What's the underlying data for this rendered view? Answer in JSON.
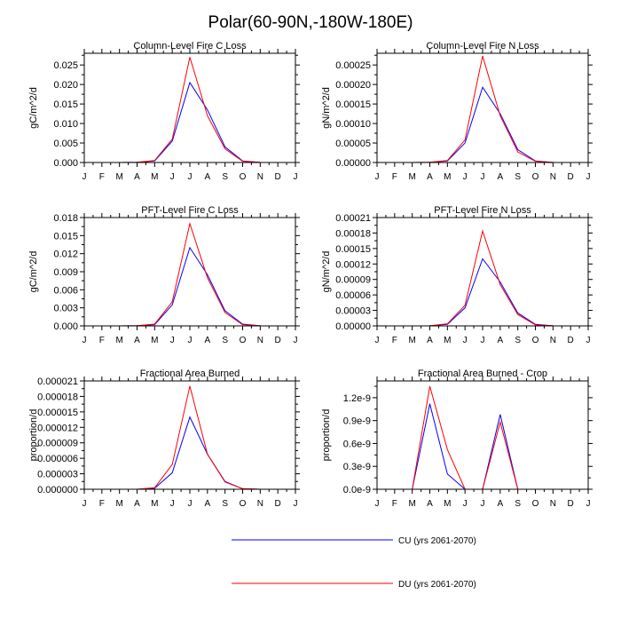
{
  "title": "Polar(60-90N,-180W-180E)",
  "month_labels": [
    "J",
    "F",
    "M",
    "A",
    "M",
    "J",
    "J",
    "A",
    "S",
    "O",
    "N",
    "D",
    "J"
  ],
  "series_meta": [
    {
      "name": "CU (yrs 2061-2070)",
      "color": "#0000ff"
    },
    {
      "name": "DU (yrs 2061-2070)",
      "color": "#ff0000"
    }
  ],
  "legend": {
    "cu_label": "CU (yrs 2061-2070)",
    "du_label": "DU (yrs 2061-2070)"
  },
  "chart_data": [
    {
      "type": "line",
      "title": "Column-Level Fire C Loss",
      "ylabel": "gC/m^2/d",
      "ylim": [
        0,
        0.028
      ],
      "yticks": [
        0,
        0.005,
        0.01,
        0.015,
        0.02,
        0.025
      ],
      "ytick_labels": [
        "0.000",
        "0.005",
        "0.010",
        "0.015",
        "0.020",
        "0.025"
      ],
      "x": [
        1,
        2,
        3,
        4,
        5,
        6,
        7,
        8,
        9,
        10,
        11,
        12,
        13
      ],
      "series": [
        {
          "name": "CU (yrs 2061-2070)",
          "values": [
            0,
            0,
            0,
            5e-05,
            0.0004,
            0.0055,
            0.0205,
            0.0135,
            0.004,
            0.0004,
            2e-05,
            0,
            0
          ]
        },
        {
          "name": "DU (yrs 2061-2070)",
          "values": [
            0,
            0,
            0,
            5e-05,
            0.0005,
            0.006,
            0.027,
            0.012,
            0.0035,
            0.0003,
            2e-05,
            0,
            0
          ]
        }
      ]
    },
    {
      "type": "line",
      "title": "Column-Level Fire N Loss",
      "ylabel": "gN/m^2/d",
      "ylim": [
        0,
        0.00028
      ],
      "yticks": [
        0,
        5e-05,
        0.0001,
        0.00015,
        0.0002,
        0.00025
      ],
      "ytick_labels": [
        "0.00000",
        "0.00005",
        "0.00010",
        "0.00015",
        "0.00020",
        "0.00025"
      ],
      "x": [
        1,
        2,
        3,
        4,
        5,
        6,
        7,
        8,
        9,
        10,
        11,
        12,
        13
      ],
      "series": [
        {
          "name": "CU (yrs 2061-2070)",
          "values": [
            0,
            0,
            0,
            5e-07,
            4e-06,
            5e-05,
            0.000193,
            0.000125,
            3.3e-05,
            4e-06,
            3e-07,
            0,
            0
          ]
        },
        {
          "name": "DU (yrs 2061-2070)",
          "values": [
            0,
            0,
            0,
            5e-07,
            5e-06,
            5.8e-05,
            0.000273,
            0.00012,
            2.7e-05,
            3e-06,
            3e-07,
            0,
            0
          ]
        }
      ]
    },
    {
      "type": "line",
      "title": "PFT-Level Fire C Loss",
      "ylabel": "gC/m^2/d",
      "ylim": [
        0,
        0.018
      ],
      "yticks": [
        0,
        0.003,
        0.006,
        0.009,
        0.012,
        0.015,
        0.018
      ],
      "ytick_labels": [
        "0.000",
        "0.003",
        "0.006",
        "0.009",
        "0.012",
        "0.015",
        "0.018"
      ],
      "x": [
        1,
        2,
        3,
        4,
        5,
        6,
        7,
        8,
        9,
        10,
        11,
        12,
        13
      ],
      "series": [
        {
          "name": "CU (yrs 2061-2070)",
          "values": [
            0,
            0,
            0,
            3e-05,
            0.0002,
            0.0035,
            0.013,
            0.0085,
            0.0025,
            0.0003,
            2e-05,
            0,
            0
          ]
        },
        {
          "name": "DU (yrs 2061-2070)",
          "values": [
            0,
            0,
            0,
            3e-05,
            0.0003,
            0.004,
            0.017,
            0.008,
            0.0022,
            0.0002,
            2e-05,
            0,
            0
          ]
        }
      ]
    },
    {
      "type": "line",
      "title": "PFT-Level Fire N Loss",
      "ylabel": "gN/m^2/d",
      "ylim": [
        0,
        0.00021
      ],
      "yticks": [
        0,
        3e-05,
        6e-05,
        9e-05,
        0.00012,
        0.00015,
        0.00018,
        0.00021
      ],
      "ytick_labels": [
        "0.00000",
        "0.00003",
        "0.00006",
        "0.00009",
        "0.00012",
        "0.00015",
        "0.00018",
        "0.00021"
      ],
      "x": [
        1,
        2,
        3,
        4,
        5,
        6,
        7,
        8,
        9,
        10,
        11,
        12,
        13
      ],
      "series": [
        {
          "name": "CU (yrs 2061-2070)",
          "values": [
            0,
            0,
            0,
            3e-07,
            3e-06,
            3.5e-05,
            0.00013,
            8.5e-05,
            2.5e-05,
            3e-06,
            2e-07,
            0,
            0
          ]
        },
        {
          "name": "DU (yrs 2061-2070)",
          "values": [
            0,
            0,
            0,
            3e-07,
            4e-06,
            4e-05,
            0.000184,
            8e-05,
            2.2e-05,
            2e-06,
            2e-07,
            0,
            0
          ]
        }
      ]
    },
    {
      "type": "line",
      "title": "Fractional Area Burned",
      "ylabel": "proportion/d",
      "ylim": [
        0,
        2.1e-05
      ],
      "yticks": [
        0,
        3e-06,
        6e-06,
        9e-06,
        1.2e-05,
        1.5e-05,
        1.8e-05,
        2.1e-05
      ],
      "ytick_labels": [
        "0.000000",
        "0.000003",
        "0.000006",
        "0.000009",
        "0.000012",
        "0.000015",
        "0.000018",
        "0.000021"
      ],
      "x": [
        1,
        2,
        3,
        4,
        5,
        6,
        7,
        8,
        9,
        10,
        11,
        12,
        13
      ],
      "series": [
        {
          "name": "CU (yrs 2061-2070)",
          "values": [
            0,
            0,
            0,
            0,
            2e-07,
            3.2e-06,
            1.4e-05,
            6.8e-06,
            1.5e-06,
            1e-07,
            0,
            0,
            0
          ]
        },
        {
          "name": "DU (yrs 2061-2070)",
          "values": [
            0,
            0,
            0,
            0,
            3e-07,
            4.8e-06,
            2e-05,
            6.8e-06,
            1.4e-06,
            1e-07,
            0,
            0,
            0
          ]
        }
      ]
    },
    {
      "type": "line",
      "title": "Fractional Area Burned - Crop",
      "ylabel": "proportion/d",
      "ylim": [
        0,
        1.42e-09
      ],
      "yticks": [
        0,
        3e-10,
        6e-10,
        9e-10,
        1.2e-09
      ],
      "ytick_labels": [
        "0.0e-9",
        "0.3e-9",
        "0.6e-9",
        "0.9e-9",
        "1.2e-9"
      ],
      "x": [
        1,
        2,
        3,
        4,
        5,
        6,
        7,
        8,
        9,
        10,
        11,
        12,
        13
      ],
      "series": [
        {
          "name": "CU (yrs 2061-2070)",
          "values": [
            0,
            0,
            0,
            1.12e-09,
            2e-10,
            0,
            0,
            9.8e-10,
            0,
            0,
            0,
            0,
            0
          ]
        },
        {
          "name": "DU (yrs 2061-2070)",
          "values": [
            0,
            0,
            0,
            1.35e-09,
            5.2e-10,
            0,
            0,
            8.8e-10,
            0,
            0,
            0,
            0,
            0
          ]
        }
      ]
    }
  ]
}
